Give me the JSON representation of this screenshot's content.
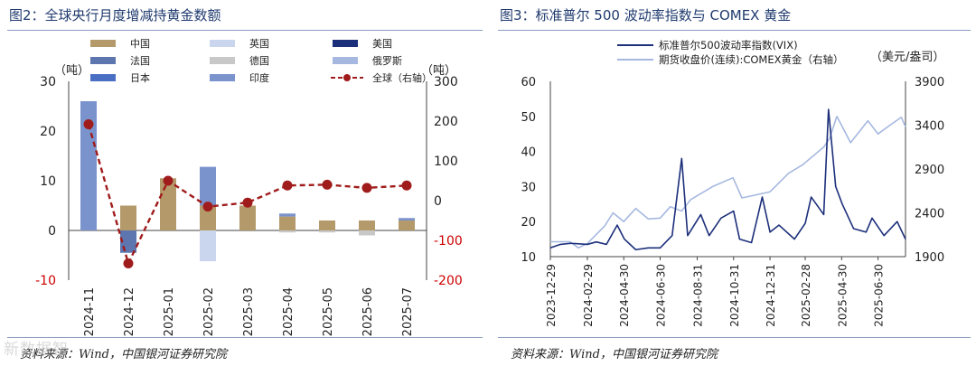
{
  "left": {
    "figure_title": "图2：全球央行月度增减持黄金数额",
    "source": "资料来源：Wind，中国银河证券研究院",
    "chart_data": {
      "type": "bar",
      "categories": [
        "2024-11",
        "2024-12",
        "2025-01",
        "2025-02",
        "2025-03",
        "2025-04",
        "2025-05",
        "2025-06",
        "2025-07"
      ],
      "left_unit": "（吨）",
      "right_unit": "（吨）",
      "ylim_left": [
        -10,
        30
      ],
      "yticks_left": [
        -10,
        0,
        10,
        20,
        30
      ],
      "ylim_right": [
        -200,
        300
      ],
      "yticks_right": [
        -200,
        -100,
        0,
        100,
        200,
        300
      ],
      "negative_color": "#cc0000",
      "series": [
        {
          "name": "中国",
          "color": "#b49a6a",
          "values": [
            0,
            5,
            10.5,
            5,
            5,
            2.8,
            2,
            2,
            2
          ]
        },
        {
          "name": "英国",
          "color": "#c9d6ee",
          "values": [
            0,
            0,
            0,
            -6.2,
            0,
            0,
            0,
            0,
            0
          ]
        },
        {
          "name": "美国",
          "color": "#1c2f7a",
          "values": [
            0,
            0,
            0,
            0,
            0,
            0,
            0,
            0,
            0
          ]
        },
        {
          "name": "法国",
          "color": "#5d76b0",
          "values": [
            0,
            -4.5,
            0,
            0,
            0,
            0,
            0,
            0,
            0
          ]
        },
        {
          "name": "德国",
          "color": "#c8c8c8",
          "values": [
            0,
            0,
            0,
            0,
            0,
            -0.4,
            -0.4,
            -1,
            0
          ]
        },
        {
          "name": "俄罗斯",
          "color": "#a6b8e0",
          "values": [
            0,
            0,
            0,
            0,
            0,
            0,
            0,
            0,
            0
          ]
        },
        {
          "name": "日本",
          "color": "#4a6ec4",
          "values": [
            0,
            0,
            0,
            0,
            0,
            0,
            0,
            0,
            0
          ]
        },
        {
          "name": "印度",
          "color": "#7b93cd",
          "values": [
            26,
            0,
            0,
            7.8,
            0,
            0.6,
            0,
            0,
            0.5
          ]
        },
        {
          "name": "全球（右轴）",
          "color": "#a01c1c",
          "type": "line",
          "axis": "right",
          "values": [
            192,
            -158,
            50,
            -15,
            -5,
            38,
            40,
            32,
            38
          ]
        }
      ]
    }
  },
  "right": {
    "figure_title": "图3：标准普尔 500 波动率指数与 COMEX 黄金",
    "source": "资料来源：Wind，中国银河证券研究院",
    "chart_data": {
      "type": "line",
      "right_unit": "（美元/盎司）",
      "x_ticks": [
        "2023-12-29",
        "2024-02-29",
        "2024-04-30",
        "2024-06-30",
        "2024-08-31",
        "2024-10-31",
        "2024-12-31",
        "2025-02-28",
        "2025-04-30",
        "2025-06-30"
      ],
      "x_range": [
        "2023-12-29",
        "2025-08-15"
      ],
      "ylim_left": [
        10,
        60
      ],
      "yticks_left": [
        10,
        20,
        30,
        40,
        50,
        60
      ],
      "ylim_right": [
        1900,
        3900
      ],
      "yticks_right": [
        1900,
        2400,
        2900,
        3400,
        3900
      ],
      "series": [
        {
          "name": "标准普尔500波动率指数(VIX)",
          "color": "#1c2f7a",
          "axis": "left",
          "points": [
            [
              "2023-12-29",
              12.5
            ],
            [
              "2024-01-15",
              13.5
            ],
            [
              "2024-02-01",
              13.8
            ],
            [
              "2024-02-29",
              13.5
            ],
            [
              "2024-03-15",
              14.2
            ],
            [
              "2024-04-01",
              13.5
            ],
            [
              "2024-04-19",
              19
            ],
            [
              "2024-05-01",
              15
            ],
            [
              "2024-05-20",
              12
            ],
            [
              "2024-06-10",
              12.5
            ],
            [
              "2024-06-30",
              12.5
            ],
            [
              "2024-07-20",
              16
            ],
            [
              "2024-08-05",
              38
            ],
            [
              "2024-08-15",
              16
            ],
            [
              "2024-09-06",
              22
            ],
            [
              "2024-09-20",
              16
            ],
            [
              "2024-10-10",
              21
            ],
            [
              "2024-10-31",
              23
            ],
            [
              "2024-11-10",
              15
            ],
            [
              "2024-11-30",
              14
            ],
            [
              "2024-12-18",
              27
            ],
            [
              "2024-12-31",
              17
            ],
            [
              "2025-01-15",
              19
            ],
            [
              "2025-02-10",
              15
            ],
            [
              "2025-02-28",
              19.5
            ],
            [
              "2025-03-10",
              27
            ],
            [
              "2025-03-31",
              22
            ],
            [
              "2025-04-08",
              52
            ],
            [
              "2025-04-20",
              30
            ],
            [
              "2025-05-01",
              25
            ],
            [
              "2025-05-20",
              18
            ],
            [
              "2025-06-10",
              17
            ],
            [
              "2025-06-20",
              21
            ],
            [
              "2025-07-10",
              16
            ],
            [
              "2025-08-01",
              20
            ],
            [
              "2025-08-15",
              15
            ]
          ]
        },
        {
          "name": "期货收盘价(连续):COMEX黄金（右轴）",
          "color": "#a6b8e0",
          "axis": "right",
          "points": [
            [
              "2023-12-29",
              2070
            ],
            [
              "2024-01-31",
              2070
            ],
            [
              "2024-02-14",
              2000
            ],
            [
              "2024-02-29",
              2050
            ],
            [
              "2024-03-29",
              2250
            ],
            [
              "2024-04-12",
              2400
            ],
            [
              "2024-04-30",
              2300
            ],
            [
              "2024-05-20",
              2450
            ],
            [
              "2024-06-10",
              2330
            ],
            [
              "2024-06-30",
              2340
            ],
            [
              "2024-07-17",
              2470
            ],
            [
              "2024-08-05",
              2420
            ],
            [
              "2024-08-20",
              2550
            ],
            [
              "2024-09-26",
              2700
            ],
            [
              "2024-10-30",
              2800
            ],
            [
              "2024-11-14",
              2570
            ],
            [
              "2024-12-31",
              2640
            ],
            [
              "2025-01-31",
              2850
            ],
            [
              "2025-02-24",
              2950
            ],
            [
              "2025-03-31",
              3150
            ],
            [
              "2025-04-10",
              3250
            ],
            [
              "2025-04-22",
              3500
            ],
            [
              "2025-05-15",
              3200
            ],
            [
              "2025-06-13",
              3450
            ],
            [
              "2025-06-30",
              3300
            ],
            [
              "2025-07-20",
              3400
            ],
            [
              "2025-08-08",
              3490
            ],
            [
              "2025-08-15",
              3380
            ]
          ]
        }
      ]
    }
  },
  "watermark": "新数据智"
}
